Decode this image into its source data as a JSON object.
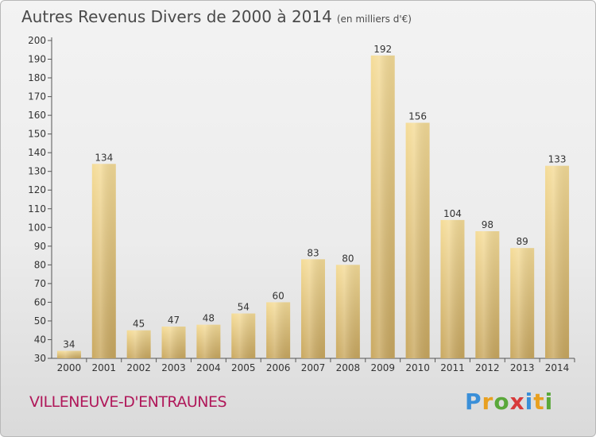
{
  "title": "Autres Revenus Divers de 2000 à 2014",
  "title_unit": "(en milliers d'€)",
  "place_name": "VILLENEUVE-D'ENTRAUNES",
  "logo_text": "Proxiti",
  "colors": {
    "bar_top": "#f5dc98",
    "bar_bottom": "#c9a860",
    "place_name": "#b0185a",
    "title": "#4a4a4a"
  },
  "chart_data": {
    "type": "bar",
    "categories": [
      "2000",
      "2001",
      "2002",
      "2003",
      "2004",
      "2005",
      "2006",
      "2007",
      "2008",
      "2009",
      "2010",
      "2011",
      "2012",
      "2013",
      "2014"
    ],
    "values": [
      34,
      134,
      45,
      47,
      48,
      54,
      60,
      83,
      80,
      192,
      156,
      104,
      98,
      89,
      133
    ],
    "ylim": [
      30,
      200
    ],
    "yticks": [
      30,
      40,
      50,
      60,
      70,
      80,
      90,
      100,
      110,
      120,
      130,
      140,
      150,
      160,
      170,
      180,
      190,
      200
    ],
    "grid": false,
    "legend": "none"
  }
}
